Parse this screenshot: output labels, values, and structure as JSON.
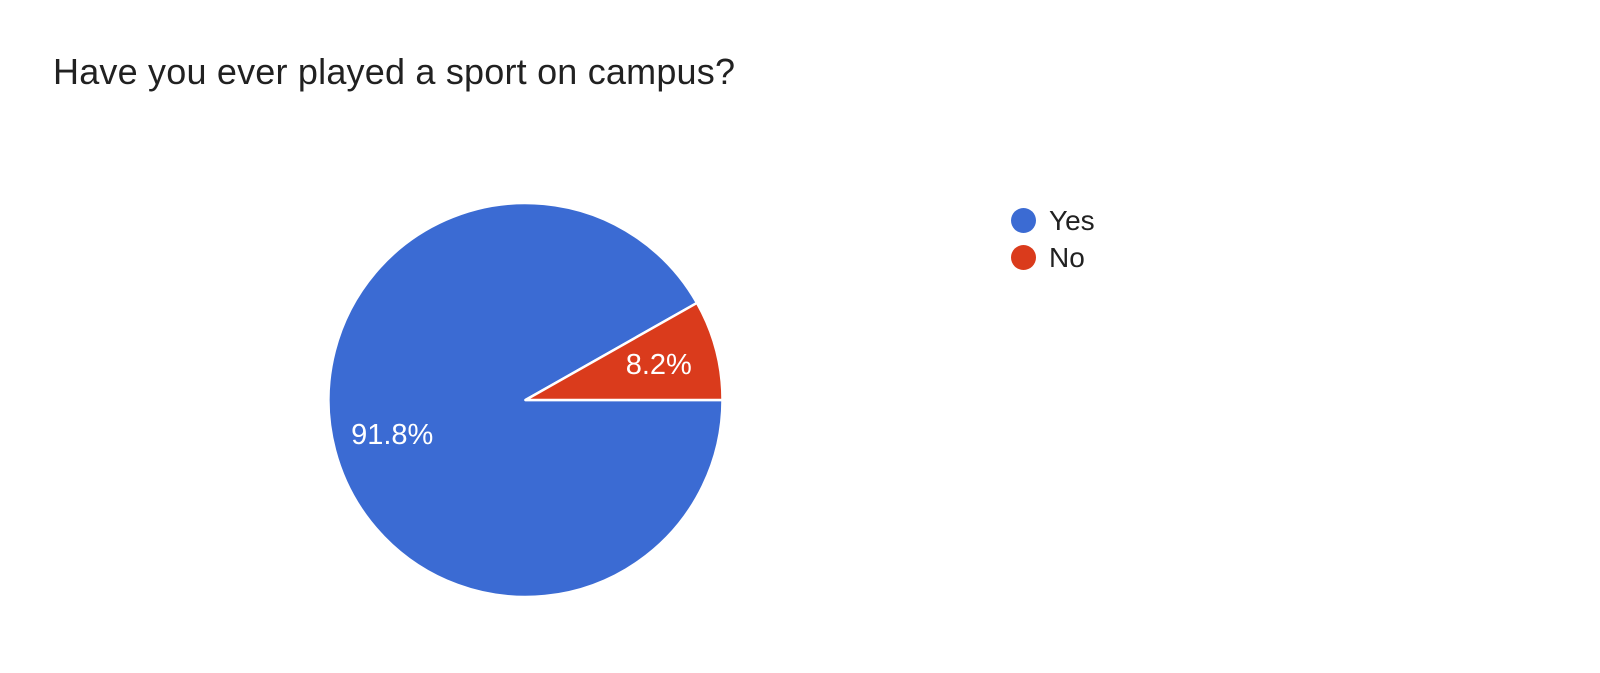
{
  "title": "Have you ever played a sport on campus?",
  "chart_data": {
    "type": "pie",
    "title": "Have you ever played a sport on campus?",
    "categories": [
      "Yes",
      "No"
    ],
    "values": [
      91.8,
      8.2
    ],
    "display_labels": [
      "91.8%",
      "8.2%"
    ],
    "colors": [
      "#3b6bd3",
      "#da3b1c"
    ],
    "label_color": "#ffffff",
    "slice_border_color": "#ffffff",
    "background_color": "#ffffff",
    "title_color": "#212121",
    "legend_text_color": "#212121",
    "start_angle_deg": 0,
    "direction": "clockwise",
    "legend_position": "right"
  }
}
